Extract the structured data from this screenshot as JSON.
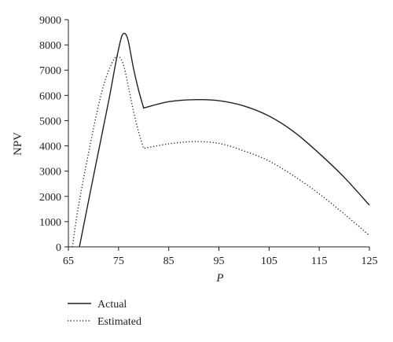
{
  "chart_data": {
    "type": "line",
    "title": "",
    "xlabel": "P",
    "ylabel": "NPV",
    "xlim": [
      65,
      125
    ],
    "ylim": [
      0,
      9000
    ],
    "xticks": [
      65,
      75,
      85,
      95,
      105,
      115,
      125
    ],
    "yticks": [
      0,
      1000,
      2000,
      3000,
      4000,
      5000,
      6000,
      7000,
      8000,
      9000
    ],
    "grid": false,
    "legend_position": "bottom-left",
    "series": [
      {
        "name": "Actual",
        "style": "solid",
        "x": [
          67.2,
          70,
          73,
          74.5,
          75.5,
          76,
          76.5,
          77,
          78,
          79,
          80,
          85,
          90,
          95,
          100,
          105,
          110,
          115,
          120,
          125
        ],
        "y": [
          0,
          2800,
          5750,
          7350,
          8250,
          8450,
          8400,
          8100,
          7050,
          6200,
          5500,
          5750,
          5830,
          5790,
          5580,
          5180,
          4550,
          3700,
          2750,
          1650
        ]
      },
      {
        "name": "Estimated",
        "style": "dotted",
        "x": [
          65.8,
          67,
          69,
          71,
          72.5,
          74,
          75,
          76,
          77,
          78,
          79,
          80,
          85,
          90,
          95,
          100,
          105,
          110,
          115,
          120,
          125
        ],
        "y": [
          0,
          1600,
          3700,
          5600,
          6700,
          7400,
          7550,
          7200,
          6300,
          5350,
          4550,
          3900,
          4080,
          4170,
          4100,
          3800,
          3400,
          2800,
          2100,
          1300,
          450
        ]
      }
    ]
  }
}
